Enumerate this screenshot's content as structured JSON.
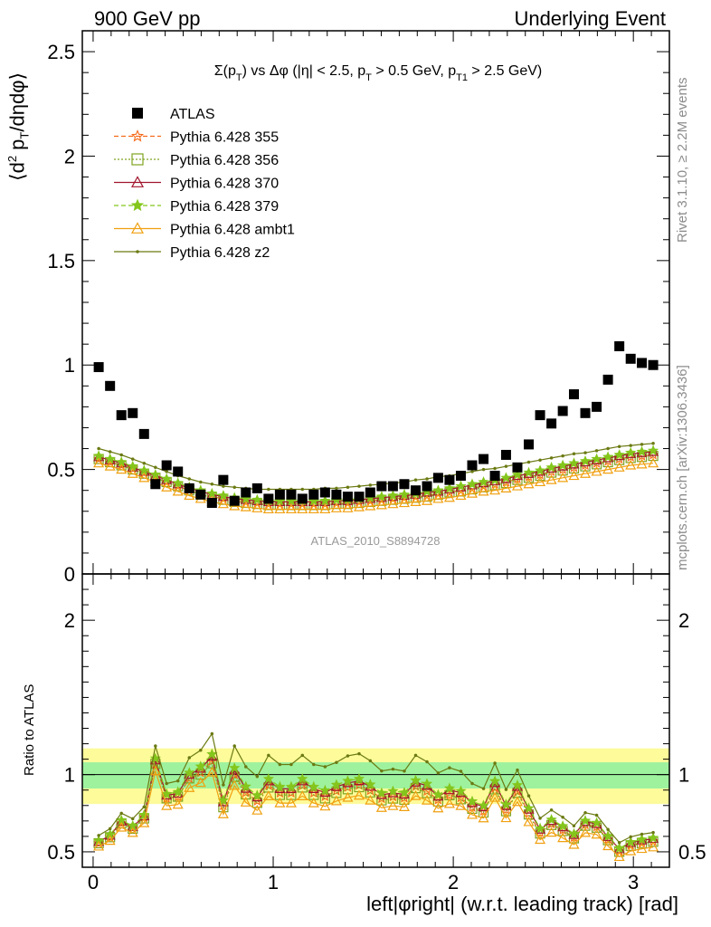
{
  "header": {
    "left": "900 GeV pp",
    "right": "Underlying Event"
  },
  "side_labels": {
    "rivet": "Rivet 3.1.10, ≥ 2.2M events",
    "mcplots": "mcplots.cern.ch [arXiv:1306.3436]"
  },
  "chart_data": [
    {
      "type": "scatter",
      "title": "Σ(p_T) vs Δφ (|η| < 2.5, p_T > 0.5 GeV, p_T1 > 2.5 GeV)",
      "ylabel": "⟨d² p_T/dηdφ⟩",
      "xlabel": "left|φright| (w.r.t. leading track) [rad]",
      "watermark": "ATLAS_2010_S8894728",
      "xlim": [
        -0.06,
        3.2
      ],
      "ylim": [
        0,
        2.6
      ],
      "yticks": [
        "0",
        "0.5",
        "1",
        "1.5",
        "2",
        "2.5"
      ],
      "legend_position": "top-left",
      "x": [
        0.031,
        0.094,
        0.157,
        0.22,
        0.283,
        0.346,
        0.408,
        0.471,
        0.534,
        0.597,
        0.66,
        0.723,
        0.785,
        0.848,
        0.911,
        0.974,
        1.037,
        1.1,
        1.162,
        1.225,
        1.288,
        1.351,
        1.414,
        1.477,
        1.539,
        1.602,
        1.665,
        1.728,
        1.791,
        1.854,
        1.916,
        1.979,
        2.042,
        2.105,
        2.168,
        2.231,
        2.293,
        2.356,
        2.419,
        2.482,
        2.545,
        2.608,
        2.67,
        2.733,
        2.796,
        2.859,
        2.922,
        2.985,
        3.047,
        3.11
      ],
      "series": [
        {
          "name": "ATLAS",
          "color": "#000000",
          "marker": "square-filled",
          "values": [
            0.99,
            0.9,
            0.76,
            0.77,
            0.67,
            0.43,
            0.52,
            0.49,
            0.41,
            0.38,
            0.34,
            0.45,
            0.35,
            0.39,
            0.41,
            0.36,
            0.38,
            0.38,
            0.36,
            0.38,
            0.39,
            0.38,
            0.37,
            0.37,
            0.39,
            0.42,
            0.42,
            0.43,
            0.4,
            0.42,
            0.46,
            0.45,
            0.47,
            0.52,
            0.55,
            0.47,
            0.57,
            0.51,
            0.62,
            0.76,
            0.72,
            0.78,
            0.86,
            0.77,
            0.8,
            0.93,
            1.09,
            1.03,
            1.01,
            1.0
          ]
        },
        {
          "name": "Pythia 6.428 355",
          "color": "#f56a1a",
          "marker": "star-open",
          "dash": "5,3",
          "values": [
            0.55,
            0.535,
            0.52,
            0.505,
            0.485,
            0.46,
            0.44,
            0.42,
            0.4,
            0.385,
            0.37,
            0.36,
            0.35,
            0.345,
            0.34,
            0.335,
            0.335,
            0.335,
            0.335,
            0.335,
            0.335,
            0.34,
            0.34,
            0.345,
            0.35,
            0.355,
            0.36,
            0.365,
            0.37,
            0.375,
            0.385,
            0.39,
            0.4,
            0.41,
            0.42,
            0.43,
            0.44,
            0.455,
            0.465,
            0.475,
            0.49,
            0.5,
            0.51,
            0.52,
            0.53,
            0.54,
            0.55,
            0.56,
            0.565,
            0.57
          ]
        },
        {
          "name": "Pythia 6.428 356",
          "color": "#7fa320",
          "marker": "square-open",
          "dash": "2,2",
          "values": [
            0.55,
            0.535,
            0.52,
            0.5,
            0.48,
            0.46,
            0.44,
            0.42,
            0.4,
            0.38,
            0.365,
            0.355,
            0.345,
            0.34,
            0.335,
            0.33,
            0.33,
            0.33,
            0.33,
            0.33,
            0.33,
            0.335,
            0.335,
            0.34,
            0.345,
            0.35,
            0.355,
            0.36,
            0.365,
            0.37,
            0.38,
            0.39,
            0.395,
            0.405,
            0.415,
            0.425,
            0.435,
            0.45,
            0.46,
            0.47,
            0.485,
            0.495,
            0.505,
            0.515,
            0.525,
            0.535,
            0.545,
            0.555,
            0.56,
            0.565
          ]
        },
        {
          "name": "Pythia 6.428 370",
          "color": "#a0142d",
          "marker": "triangle-open",
          "dash": "",
          "values": [
            0.56,
            0.545,
            0.53,
            0.51,
            0.49,
            0.47,
            0.45,
            0.43,
            0.41,
            0.395,
            0.38,
            0.37,
            0.36,
            0.355,
            0.35,
            0.345,
            0.345,
            0.345,
            0.345,
            0.345,
            0.345,
            0.35,
            0.35,
            0.355,
            0.36,
            0.365,
            0.37,
            0.375,
            0.38,
            0.39,
            0.395,
            0.405,
            0.415,
            0.425,
            0.435,
            0.445,
            0.455,
            0.47,
            0.48,
            0.49,
            0.505,
            0.515,
            0.525,
            0.535,
            0.545,
            0.555,
            0.565,
            0.575,
            0.58,
            0.585
          ]
        },
        {
          "name": "Pythia 6.428 379",
          "color": "#84c61c",
          "marker": "star-filled",
          "dash": "5,3",
          "values": [
            0.565,
            0.55,
            0.535,
            0.515,
            0.495,
            0.475,
            0.455,
            0.435,
            0.415,
            0.4,
            0.385,
            0.375,
            0.365,
            0.36,
            0.355,
            0.35,
            0.35,
            0.35,
            0.35,
            0.35,
            0.35,
            0.355,
            0.355,
            0.36,
            0.365,
            0.37,
            0.375,
            0.38,
            0.385,
            0.395,
            0.4,
            0.41,
            0.42,
            0.43,
            0.44,
            0.45,
            0.46,
            0.475,
            0.485,
            0.495,
            0.51,
            0.52,
            0.53,
            0.54,
            0.55,
            0.56,
            0.57,
            0.58,
            0.585,
            0.59
          ]
        },
        {
          "name": "Pythia 6.428 ambt1",
          "color": "#f0a010",
          "marker": "triangle-open",
          "dash": "",
          "values": [
            0.53,
            0.515,
            0.5,
            0.48,
            0.46,
            0.44,
            0.415,
            0.395,
            0.375,
            0.36,
            0.345,
            0.335,
            0.325,
            0.32,
            0.315,
            0.31,
            0.31,
            0.31,
            0.31,
            0.31,
            0.31,
            0.315,
            0.315,
            0.32,
            0.325,
            0.33,
            0.335,
            0.34,
            0.345,
            0.35,
            0.36,
            0.365,
            0.375,
            0.385,
            0.395,
            0.4,
            0.41,
            0.42,
            0.43,
            0.44,
            0.45,
            0.46,
            0.47,
            0.48,
            0.49,
            0.5,
            0.51,
            0.52,
            0.525,
            0.53
          ]
        },
        {
          "name": "Pythia 6.428 z2",
          "color": "#6b7a12",
          "marker": "dot",
          "dash": "",
          "values": [
            0.6,
            0.585,
            0.57,
            0.55,
            0.53,
            0.51,
            0.49,
            0.47,
            0.455,
            0.44,
            0.43,
            0.42,
            0.415,
            0.41,
            0.405,
            0.405,
            0.405,
            0.405,
            0.405,
            0.405,
            0.41,
            0.41,
            0.415,
            0.42,
            0.425,
            0.43,
            0.435,
            0.44,
            0.45,
            0.455,
            0.465,
            0.47,
            0.48,
            0.49,
            0.5,
            0.505,
            0.515,
            0.525,
            0.535,
            0.545,
            0.555,
            0.565,
            0.575,
            0.58,
            0.59,
            0.6,
            0.61,
            0.615,
            0.62,
            0.625
          ]
        }
      ]
    },
    {
      "type": "line",
      "ylabel": "Ratio to ATLAS",
      "ylim": [
        0.4,
        2.3
      ],
      "yticks": [
        "0.5",
        "1",
        "2"
      ],
      "xlim": [
        -0.06,
        3.2
      ],
      "xticks": [
        "0",
        "1",
        "2",
        "3"
      ],
      "bands": {
        "inner_color": "#9ef29e",
        "outer_color": "#fdfb9a",
        "inner": [
          0.91,
          1.08
        ],
        "outer": [
          0.81,
          1.17
        ]
      },
      "note": "ratio series = Pythia / ATLAS for each tune"
    }
  ]
}
